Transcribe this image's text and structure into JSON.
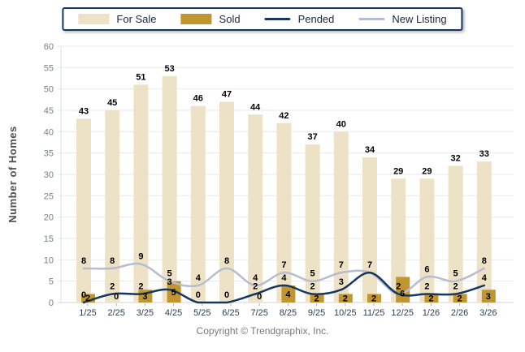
{
  "legend": {
    "items": [
      {
        "label": "For Sale",
        "swatch": "bar",
        "color": "#EDE1C6"
      },
      {
        "label": "Sold",
        "swatch": "bar",
        "color": "#C1952F"
      },
      {
        "label": "Pended",
        "swatch": "line",
        "color": "#17375E"
      },
      {
        "label": "New Listing",
        "swatch": "line",
        "color": "#B6BDCE"
      }
    ],
    "border_color": "#17375E"
  },
  "footer": {
    "copyright": "Copyright © Trendgraphix, Inc."
  },
  "chart_data": {
    "type": "bar+line",
    "title": "",
    "ylabel": "Number of Homes",
    "ylim": [
      0,
      60
    ],
    "ytick_step": 5,
    "grid": true,
    "legend_position": "top-center",
    "categories": [
      "1/25",
      "2/25",
      "3/25",
      "4/25",
      "5/25",
      "6/25",
      "7/25",
      "8/25",
      "9/25",
      "10/25",
      "11/25",
      "12/25",
      "1/26",
      "2/26",
      "3/26"
    ],
    "series": [
      {
        "name": "For Sale",
        "type": "bar",
        "color": "#EDE1C6",
        "values": [
          43,
          45,
          51,
          53,
          46,
          47,
          44,
          42,
          37,
          40,
          34,
          29,
          29,
          32,
          33
        ]
      },
      {
        "name": "Sold",
        "type": "bar",
        "color": "#C1952F",
        "values": [
          2,
          0,
          3,
          5,
          0,
          0,
          0,
          4,
          2,
          2,
          2,
          6,
          2,
          2,
          3
        ]
      },
      {
        "name": "Pended",
        "type": "line",
        "color": "#17375E",
        "values": [
          0,
          2,
          2,
          3,
          0,
          0,
          2,
          4,
          2,
          3,
          7,
          2,
          2,
          2,
          4
        ]
      },
      {
        "name": "New Listing",
        "type": "line",
        "color": "#B6BDCE",
        "values": [
          8,
          8,
          9,
          5,
          4,
          8,
          4,
          7,
          5,
          7,
          7,
          2,
          6,
          5,
          8
        ]
      }
    ],
    "axis_colors": {
      "grid": "#EAEAEA",
      "baseline": "#D0D4D8",
      "ytick_text": "#75808A",
      "xtick_text": "#2F3E4E"
    }
  }
}
